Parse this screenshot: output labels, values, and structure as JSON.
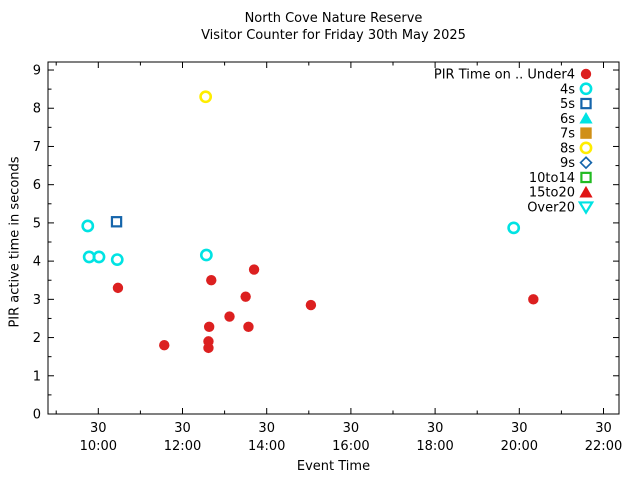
{
  "chart_data": {
    "type": "scatter",
    "title": "North Cove Nature Reserve",
    "subtitle": "Visitor Counter for Friday 30th May 2025",
    "xlabel": "Event Time",
    "ylabel": "PIR active time in seconds",
    "colors": {
      "title_text": "#1565b0",
      "axis_label_text": "#2222ff",
      "tick_text": "#000000",
      "axis_line": "#000000",
      "background": "#ffffff"
    },
    "x_axis": {
      "day_label": "30",
      "major_ticks": [
        "10:00",
        "12:00",
        "14:00",
        "16:00",
        "18:00",
        "20:00",
        "22:00"
      ],
      "minor_ticks": [
        "09:00",
        "11:00",
        "13:00",
        "15:00",
        "17:00",
        "19:00",
        "21:00"
      ],
      "x_range": [
        "08:48",
        "22:22"
      ]
    },
    "y_axis": {
      "major_ticks": [
        0,
        1,
        2,
        3,
        4,
        5,
        6,
        7,
        8,
        9
      ],
      "minor_step": 0.5,
      "y_range": [
        0,
        9.2
      ]
    },
    "legend": {
      "position": "top-right-inside",
      "entries": [
        {
          "label": "PIR Time on .. Under4",
          "marker": "circle",
          "fill": true,
          "color": "#dc2020"
        },
        {
          "label": "4s",
          "marker": "circle",
          "fill": false,
          "color": "#00e3e3"
        },
        {
          "label": "5s",
          "marker": "square",
          "fill": false,
          "color": "#1565ab"
        },
        {
          "label": "6s",
          "marker": "triangle-up",
          "fill": true,
          "color": "#00e3e3"
        },
        {
          "label": "7s",
          "marker": "square",
          "fill": true,
          "color": "#d09017"
        },
        {
          "label": "8s",
          "marker": "circle",
          "fill": false,
          "color": "#ffed00"
        },
        {
          "label": "9s",
          "marker": "diamond",
          "fill": false,
          "color": "#1565ab"
        },
        {
          "label": "10to14",
          "marker": "square",
          "fill": false,
          "color": "#22bb22"
        },
        {
          "label": "15to20",
          "marker": "triangle-up",
          "fill": true,
          "color": "#e01414"
        },
        {
          "label": "Over20",
          "marker": "triangle-down",
          "fill": false,
          "color": "#00e3e3"
        }
      ]
    },
    "series": [
      {
        "name": "Under4",
        "marker": "circle",
        "fill": true,
        "color": "#dc2020",
        "points": [
          {
            "time": "10:28",
            "seconds": 3.3
          },
          {
            "time": "11:34",
            "seconds": 1.8
          },
          {
            "time": "12:37",
            "seconds": 1.9
          },
          {
            "time": "12:37",
            "seconds": 1.73
          },
          {
            "time": "12:38",
            "seconds": 2.28
          },
          {
            "time": "12:41",
            "seconds": 3.5
          },
          {
            "time": "13:07",
            "seconds": 2.55
          },
          {
            "time": "13:30",
            "seconds": 3.07
          },
          {
            "time": "13:34",
            "seconds": 2.28
          },
          {
            "time": "13:42",
            "seconds": 3.78
          },
          {
            "time": "15:03",
            "seconds": 2.85
          },
          {
            "time": "20:20",
            "seconds": 3.0
          }
        ]
      },
      {
        "name": "4s",
        "marker": "circle",
        "fill": false,
        "color": "#00e3e3",
        "points": [
          {
            "time": "09:45",
            "seconds": 4.92
          },
          {
            "time": "09:47",
            "seconds": 4.11
          },
          {
            "time": "10:01",
            "seconds": 4.11
          },
          {
            "time": "10:27",
            "seconds": 4.04
          },
          {
            "time": "12:34",
            "seconds": 4.16
          },
          {
            "time": "19:52",
            "seconds": 4.87
          }
        ]
      },
      {
        "name": "5s",
        "marker": "square",
        "fill": false,
        "color": "#1565ab",
        "points": [
          {
            "time": "10:26",
            "seconds": 5.03
          }
        ]
      },
      {
        "name": "6s",
        "marker": "triangle-up",
        "fill": true,
        "color": "#00e3e3",
        "points": []
      },
      {
        "name": "7s",
        "marker": "square",
        "fill": true,
        "color": "#d09017",
        "points": []
      },
      {
        "name": "8s",
        "marker": "circle",
        "fill": false,
        "color": "#ffed00",
        "points": [
          {
            "time": "12:33",
            "seconds": 8.3
          }
        ]
      },
      {
        "name": "9s",
        "marker": "diamond",
        "fill": false,
        "color": "#1565ab",
        "points": []
      },
      {
        "name": "10to14",
        "marker": "square",
        "fill": false,
        "color": "#22bb22",
        "points": []
      },
      {
        "name": "15to20",
        "marker": "triangle-up",
        "fill": true,
        "color": "#e01414",
        "points": []
      },
      {
        "name": "Over20",
        "marker": "triangle-down",
        "fill": false,
        "color": "#00e3e3",
        "points": []
      }
    ]
  }
}
